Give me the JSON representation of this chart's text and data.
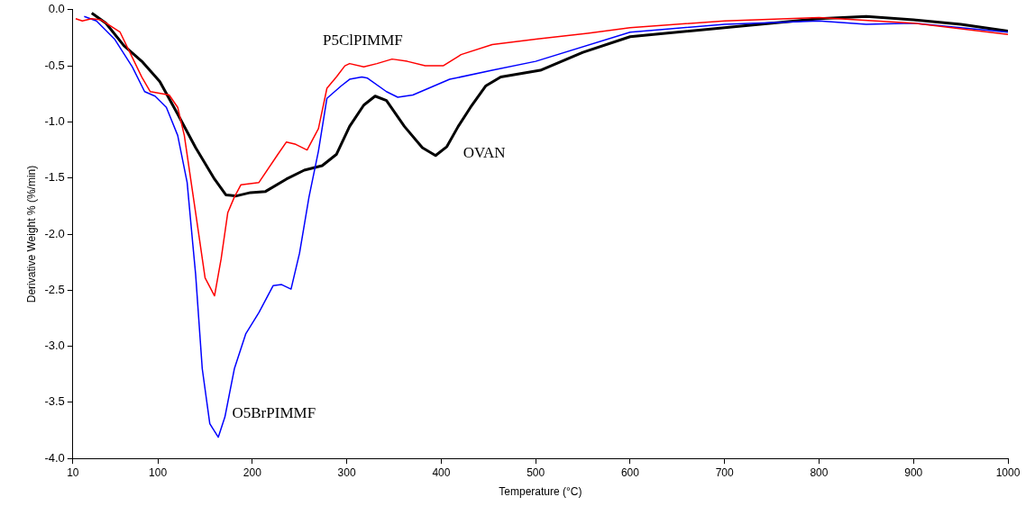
{
  "chart_data": {
    "type": "line",
    "xlabel": "Temperature (°C)",
    "ylabel": "Derivative Weight % (%/min)",
    "xlim": [
      10,
      1000
    ],
    "xticks": [
      10,
      100,
      200,
      300,
      400,
      500,
      600,
      700,
      800,
      900,
      1000
    ],
    "ylim": [
      -4,
      0
    ],
    "yticks": [
      {
        "value": -4,
        "label": "-4.0"
      },
      {
        "value": -3.5,
        "label": "-3.5"
      },
      {
        "value": -3,
        "label": "-3.0"
      },
      {
        "value": -2.5,
        "label": "-2.5"
      },
      {
        "value": -2,
        "label": "-2.0"
      },
      {
        "value": -1.5,
        "label": "-1.5"
      },
      {
        "value": -1,
        "label": "-1.0"
      },
      {
        "value": -0.5,
        "label": "-0.5"
      },
      {
        "value": 0,
        "label": "0.0"
      }
    ],
    "grid": false,
    "legend": false,
    "marker": "none",
    "line_style": "solid",
    "series": [
      {
        "name": "P5ClPIMMF",
        "color": "#ff0000",
        "x": [
          13,
          20,
          30,
          40,
          60,
          83,
          92,
          112,
          121,
          128,
          140,
          150,
          160,
          167,
          174,
          181,
          188,
          207,
          227,
          236,
          246,
          258,
          270,
          279,
          289,
          298,
          303,
          318,
          332,
          348,
          364,
          383,
          402,
          421,
          454,
          502,
          555,
          600,
          700,
          800,
          900,
          1000
        ],
        "values": [
          -0.08,
          -0.1,
          -0.08,
          -0.09,
          -0.2,
          -0.6,
          -0.73,
          -0.76,
          -0.87,
          -1.12,
          -1.81,
          -2.39,
          -2.55,
          -2.22,
          -1.81,
          -1.67,
          -1.56,
          -1.54,
          -1.29,
          -1.18,
          -1.2,
          -1.25,
          -1.06,
          -0.7,
          -0.6,
          -0.5,
          -0.48,
          -0.51,
          -0.48,
          -0.44,
          -0.46,
          -0.5,
          -0.5,
          -0.4,
          -0.31,
          -0.26,
          -0.21,
          -0.16,
          -0.1,
          -0.07,
          -0.12,
          -0.22
        ]
      },
      {
        "name": "O5BrPIMMF",
        "color": "#0000ff",
        "x": [
          22,
          35,
          54,
          73,
          86,
          97,
          109,
          121,
          131,
          137,
          140,
          147,
          155,
          164,
          171,
          181,
          193,
          207,
          222,
          231,
          241,
          250,
          260,
          270,
          279,
          294,
          303,
          316,
          322,
          342,
          354,
          370,
          409,
          454,
          500,
          600,
          700,
          800,
          850,
          900,
          1000
        ],
        "values": [
          -0.06,
          -0.1,
          -0.26,
          -0.51,
          -0.73,
          -0.77,
          -0.87,
          -1.12,
          -1.54,
          -2.09,
          -2.36,
          -3.2,
          -3.69,
          -3.81,
          -3.63,
          -3.2,
          -2.89,
          -2.7,
          -2.46,
          -2.45,
          -2.49,
          -2.17,
          -1.67,
          -1.26,
          -0.79,
          -0.68,
          -0.62,
          -0.6,
          -0.61,
          -0.73,
          -0.78,
          -0.76,
          -0.62,
          -0.54,
          -0.46,
          -0.2,
          -0.13,
          -0.1,
          -0.13,
          -0.12,
          -0.2
        ]
      },
      {
        "name": "OVAN",
        "color": "#000000",
        "x": [
          30,
          45,
          64,
          83,
          102,
          121,
          140,
          160,
          172,
          183,
          198,
          214,
          236,
          255,
          274,
          289,
          303,
          318,
          330,
          342,
          361,
          380,
          394,
          406,
          418,
          431,
          447,
          463,
          505,
          550,
          600,
          700,
          800,
          850,
          900,
          950,
          1000
        ],
        "values": [
          -0.03,
          -0.12,
          -0.32,
          -0.46,
          -0.64,
          -0.93,
          -1.23,
          -1.51,
          -1.65,
          -1.66,
          -1.63,
          -1.62,
          -1.51,
          -1.43,
          -1.39,
          -1.29,
          -1.04,
          -0.85,
          -0.77,
          -0.81,
          -1.04,
          -1.23,
          -1.3,
          -1.22,
          -1.04,
          -0.87,
          -0.68,
          -0.6,
          -0.54,
          -0.38,
          -0.24,
          -0.16,
          -0.08,
          -0.06,
          -0.09,
          -0.13,
          -0.19
        ]
      }
    ]
  }
}
